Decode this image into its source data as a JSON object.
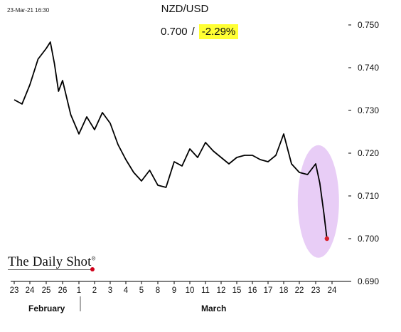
{
  "header": {
    "timestamp": "23-Mar-21 16:30",
    "title": "NZD/USD",
    "last_value": "0.700",
    "separator": "/",
    "change": "-2.29%"
  },
  "brand": {
    "name": "The Daily Shot",
    "mark": "®"
  },
  "colors": {
    "line": "#000000",
    "highlight": "#e6c8f5",
    "end_dot": "#d9202a",
    "change_bg": "#ffff33"
  },
  "chart_data": {
    "type": "line",
    "title": "NZD/USD",
    "ylim": [
      0.69,
      0.75
    ],
    "y_ticks": [
      "0.750",
      "0.740",
      "0.730",
      "0.720",
      "0.710",
      "0.700",
      "0.690"
    ],
    "y_tick_values": [
      0.75,
      0.74,
      0.73,
      0.72,
      0.71,
      0.7,
      0.69
    ],
    "x_tick_labels": [
      "23",
      "24",
      "25",
      "26",
      "1",
      "2",
      "3",
      "4",
      "5",
      "8",
      "9",
      "10",
      "11",
      "12",
      "15",
      "16",
      "17",
      "18",
      "22",
      "23",
      "24"
    ],
    "x_tick_dates": [
      "2021-02-23",
      "2021-02-24",
      "2021-02-25",
      "2021-02-26",
      "2021-03-01",
      "2021-03-02",
      "2021-03-03",
      "2021-03-04",
      "2021-03-05",
      "2021-03-08",
      "2021-03-09",
      "2021-03-10",
      "2021-03-11",
      "2021-03-12",
      "2021-03-15",
      "2021-03-16",
      "2021-03-17",
      "2021-03-18",
      "2021-03-22",
      "2021-03-23",
      "2021-03-24"
    ],
    "month_labels": [
      "February",
      "March"
    ],
    "grid": false,
    "series": [
      {
        "x": [
          "2021-02-23 00:00",
          "2021-02-23 12:00",
          "2021-02-24 00:00",
          "2021-02-24 12:00",
          "2021-02-25 00:00",
          "2021-02-25 06:00",
          "2021-02-25 12:00",
          "2021-02-25 18:00",
          "2021-02-26 00:00",
          "2021-02-26 12:00",
          "2021-03-01 00:00",
          "2021-03-01 12:00",
          "2021-03-02 00:00",
          "2021-03-02 12:00",
          "2021-03-03 00:00",
          "2021-03-03 12:00",
          "2021-03-04 00:00",
          "2021-03-04 12:00",
          "2021-03-05 00:00",
          "2021-03-05 12:00",
          "2021-03-08 00:00",
          "2021-03-08 12:00",
          "2021-03-09 00:00",
          "2021-03-09 12:00",
          "2021-03-10 00:00",
          "2021-03-10 12:00",
          "2021-03-11 00:00",
          "2021-03-11 12:00",
          "2021-03-12 00:00",
          "2021-03-12 12:00",
          "2021-03-15 00:00",
          "2021-03-15 12:00",
          "2021-03-16 00:00",
          "2021-03-16 12:00",
          "2021-03-17 00:00",
          "2021-03-17 12:00",
          "2021-03-18 00:00",
          "2021-03-18 12:00",
          "2021-03-22 00:00",
          "2021-03-22 12:00",
          "2021-03-23 00:00",
          "2021-03-23 06:00",
          "2021-03-23 12:00",
          "2021-03-23 16:30"
        ],
        "values": [
          0.7325,
          0.7315,
          0.736,
          0.742,
          0.7445,
          0.746,
          0.741,
          0.7345,
          0.737,
          0.729,
          0.7245,
          0.7285,
          0.7255,
          0.7295,
          0.727,
          0.722,
          0.7185,
          0.7155,
          0.7135,
          0.716,
          0.7125,
          0.712,
          0.718,
          0.717,
          0.721,
          0.719,
          0.7225,
          0.7205,
          0.719,
          0.7175,
          0.719,
          0.7195,
          0.7195,
          0.7185,
          0.718,
          0.7195,
          0.7245,
          0.7175,
          0.7155,
          0.715,
          0.7175,
          0.713,
          0.706,
          0.7
        ]
      }
    ]
  }
}
